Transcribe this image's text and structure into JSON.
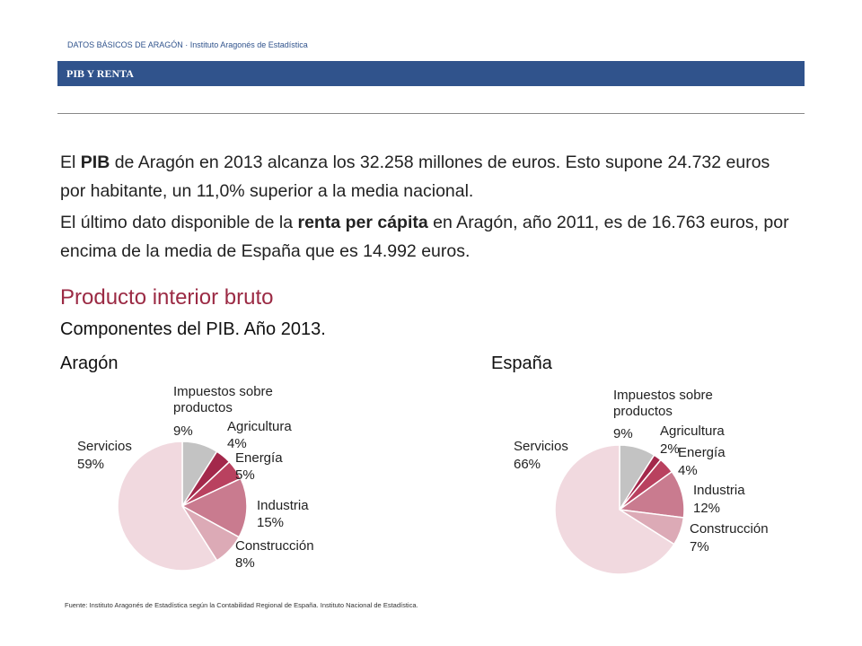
{
  "header": {
    "breadcrumb": "DATOS BÁSICOS DE ARAGÓN",
    "source_org": "Instituto Aragonés de Estadística",
    "section": "PIB Y RENTA"
  },
  "paragraphs": [
    [
      "El ",
      "PIB",
      " de Aragón en 2013 alcanza los 32.258 millones de euros. Esto supone 24.732 euros por habitante, un 11,0% superior a la media nacional."
    ],
    [
      "El último dato disponible de la ",
      "renta per cápita",
      " en Aragón, año 2011, es de 16.763 euros, por encima de la media de  España  que es 14.992 euros."
    ]
  ],
  "section_title": "Producto interior bruto",
  "section_subtitle": "Componentes del PIB. Año 2013.",
  "chart_data": [
    {
      "type": "pie",
      "title": "Aragón",
      "categories": [
        "Impuestos sobre productos",
        "Agricultura",
        "Energía",
        "Industria",
        "Construcción",
        "Servicios"
      ],
      "values": [
        9,
        4,
        5,
        15,
        8,
        59
      ],
      "value_labels": [
        "9%",
        "4%",
        "5%",
        "15%",
        "8%",
        "59%"
      ],
      "colors": [
        "#c3c3c3",
        "#a3284b",
        "#b9415f",
        "#c97b8f",
        "#dcaab6",
        "#f1d9df"
      ]
    },
    {
      "type": "pie",
      "title": "España",
      "categories": [
        "Impuestos sobre productos",
        "Agricultura",
        "Energía",
        "Industria",
        "Construcción",
        "Servicios"
      ],
      "values": [
        9,
        2,
        4,
        12,
        7,
        66
      ],
      "value_labels": [
        "9%",
        "2%",
        "4%",
        "12%",
        "7%",
        "66%"
      ],
      "colors": [
        "#c3c3c3",
        "#a3284b",
        "#b9415f",
        "#c97b8f",
        "#dcaab6",
        "#f1d9df"
      ]
    }
  ],
  "footer": "Fuente: Instituto Aragonés de Estadística según la Contabilidad Regional de España. Instituto Nacional de Estadística."
}
